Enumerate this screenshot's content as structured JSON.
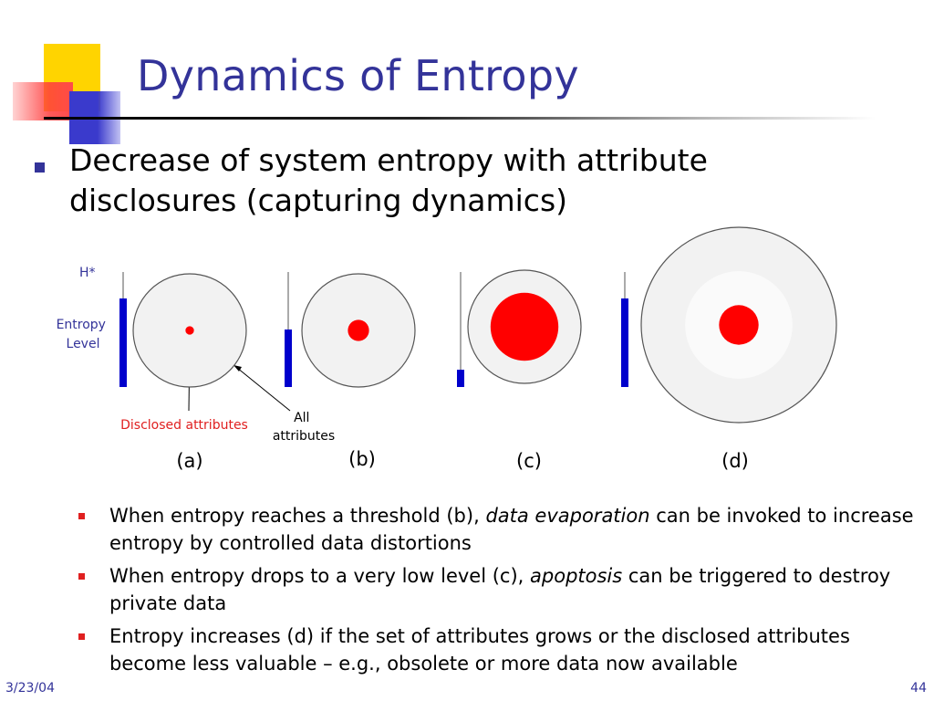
{
  "slide": {
    "title": "Dynamics of Entropy",
    "main_bullet": "Decrease of system entropy with attribute disclosures (capturing dynamics)",
    "colors": {
      "title": "#333399",
      "entropy_bar": "#0000cc",
      "disclosed_red": "#ff0000",
      "circle_fill": "#f2f2f2",
      "sub_bullet_marker": "#e02020"
    }
  },
  "diagram": {
    "hstar_label": "H*",
    "entropy_level_label_line1": "Entropy",
    "entropy_level_label_line2": "Level",
    "disclosed_attributes_label": "Disclosed attributes",
    "all_attributes_label_line1": "All",
    "all_attributes_label_line2": "attributes",
    "panels": [
      {
        "label": "(a)",
        "entropy_level": 0.77,
        "disclosed_fraction": 0.06,
        "attribute_set": "normal"
      },
      {
        "label": "(b)",
        "entropy_level": 0.5,
        "disclosed_fraction": 0.15,
        "attribute_set": "normal"
      },
      {
        "label": "(c)",
        "entropy_level": 0.15,
        "disclosed_fraction": 0.48,
        "attribute_set": "normal"
      },
      {
        "label": "(d)",
        "entropy_level": 0.77,
        "disclosed_fraction": 0.28,
        "attribute_set": "grown"
      }
    ]
  },
  "sub_bullets": [
    {
      "before": "When entropy reaches a threshold (b), ",
      "emph": "data evaporation",
      "after": " can be invoked to increase entropy by controlled data distortions"
    },
    {
      "before": "When entropy drops to a very low level (c), ",
      "emph": "apoptosis",
      "after": " can be triggered to destroy private data"
    },
    {
      "before": "Entropy increases (d) if the set of attributes grows or the disclosed attributes become less valuable – e.g., obsolete or more data now available",
      "emph": "",
      "after": ""
    }
  ],
  "footer": {
    "date": "3/23/04",
    "page": "44"
  }
}
